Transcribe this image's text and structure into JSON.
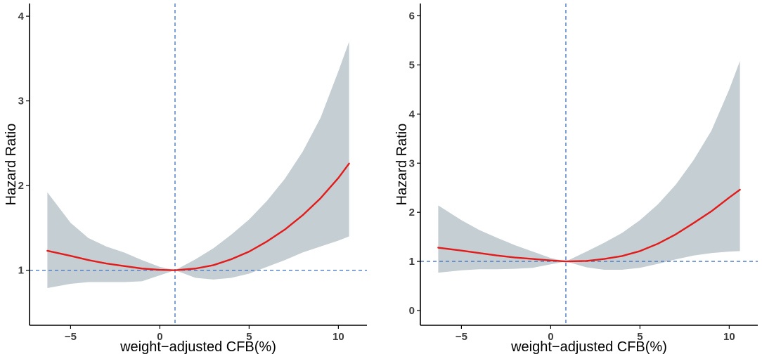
{
  "colors": {
    "curve": "#e21b1b",
    "band": "#c5cfd3",
    "reference": "#4a78c2",
    "axis": "#000000"
  },
  "chart_data": [
    {
      "type": "line",
      "xlabel": "weight−adjusted CFB(%)",
      "ylabel": "Hazard Ratio",
      "xlim": [
        -7.3,
        11.6
      ],
      "ylim": [
        0.35,
        4.15
      ],
      "xticks": [
        -5,
        0,
        5,
        10
      ],
      "xtick_labels": [
        "−5",
        "0",
        "5",
        "10"
      ],
      "yticks": [
        1,
        2,
        3,
        4
      ],
      "ytick_labels": [
        "1",
        "2",
        "3",
        "4"
      ],
      "reference_x": 0.85,
      "reference_y": 1,
      "series": [
        {
          "name": "Hazard Ratio",
          "x": [
            -6.3,
            -5,
            -4,
            -3,
            -2,
            -1,
            0,
            0.85,
            2,
            3,
            4,
            5,
            6,
            7,
            8,
            9,
            10,
            10.6
          ],
          "y": [
            1.23,
            1.17,
            1.12,
            1.08,
            1.05,
            1.02,
            1.005,
            1.0,
            1.02,
            1.06,
            1.13,
            1.22,
            1.34,
            1.48,
            1.65,
            1.85,
            2.09,
            2.26
          ],
          "lower": [
            0.79,
            0.84,
            0.86,
            0.86,
            0.86,
            0.87,
            0.94,
            1.0,
            0.91,
            0.89,
            0.91,
            0.96,
            1.04,
            1.12,
            1.21,
            1.28,
            1.35,
            1.4
          ],
          "upper": [
            1.92,
            1.56,
            1.38,
            1.28,
            1.21,
            1.12,
            1.04,
            1.0,
            1.13,
            1.26,
            1.42,
            1.6,
            1.82,
            2.08,
            2.4,
            2.8,
            3.35,
            3.7
          ]
        }
      ]
    },
    {
      "type": "line",
      "xlabel": "weight−adjusted CFB(%)",
      "ylabel": "Hazard Ratio",
      "xlim": [
        -7.3,
        11.6
      ],
      "ylim": [
        -0.3,
        6.25
      ],
      "xticks": [
        -5,
        0,
        5,
        10
      ],
      "xtick_labels": [
        "−5",
        "0",
        "5",
        "10"
      ],
      "yticks": [
        0,
        1,
        2,
        3,
        4,
        5,
        6
      ],
      "ytick_labels": [
        "0",
        "1",
        "2",
        "3",
        "4",
        "5",
        "6"
      ],
      "reference_x": 0.85,
      "reference_y": 1,
      "series": [
        {
          "name": "Hazard Ratio",
          "x": [
            -6.3,
            -5,
            -4,
            -3,
            -2,
            -1,
            0,
            0.85,
            2,
            3,
            4,
            5,
            6,
            7,
            8,
            9,
            10,
            10.6
          ],
          "y": [
            1.28,
            1.22,
            1.17,
            1.12,
            1.08,
            1.05,
            1.02,
            1.0,
            1.01,
            1.05,
            1.11,
            1.21,
            1.36,
            1.55,
            1.78,
            2.02,
            2.3,
            2.46
          ],
          "lower": [
            0.77,
            0.82,
            0.84,
            0.84,
            0.85,
            0.87,
            0.94,
            1.0,
            0.88,
            0.83,
            0.83,
            0.87,
            0.95,
            1.04,
            1.12,
            1.17,
            1.2,
            1.21
          ],
          "upper": [
            2.14,
            1.84,
            1.64,
            1.48,
            1.33,
            1.2,
            1.07,
            1.0,
            1.2,
            1.38,
            1.58,
            1.84,
            2.16,
            2.56,
            3.06,
            3.66,
            4.5,
            5.08
          ]
        }
      ]
    }
  ]
}
